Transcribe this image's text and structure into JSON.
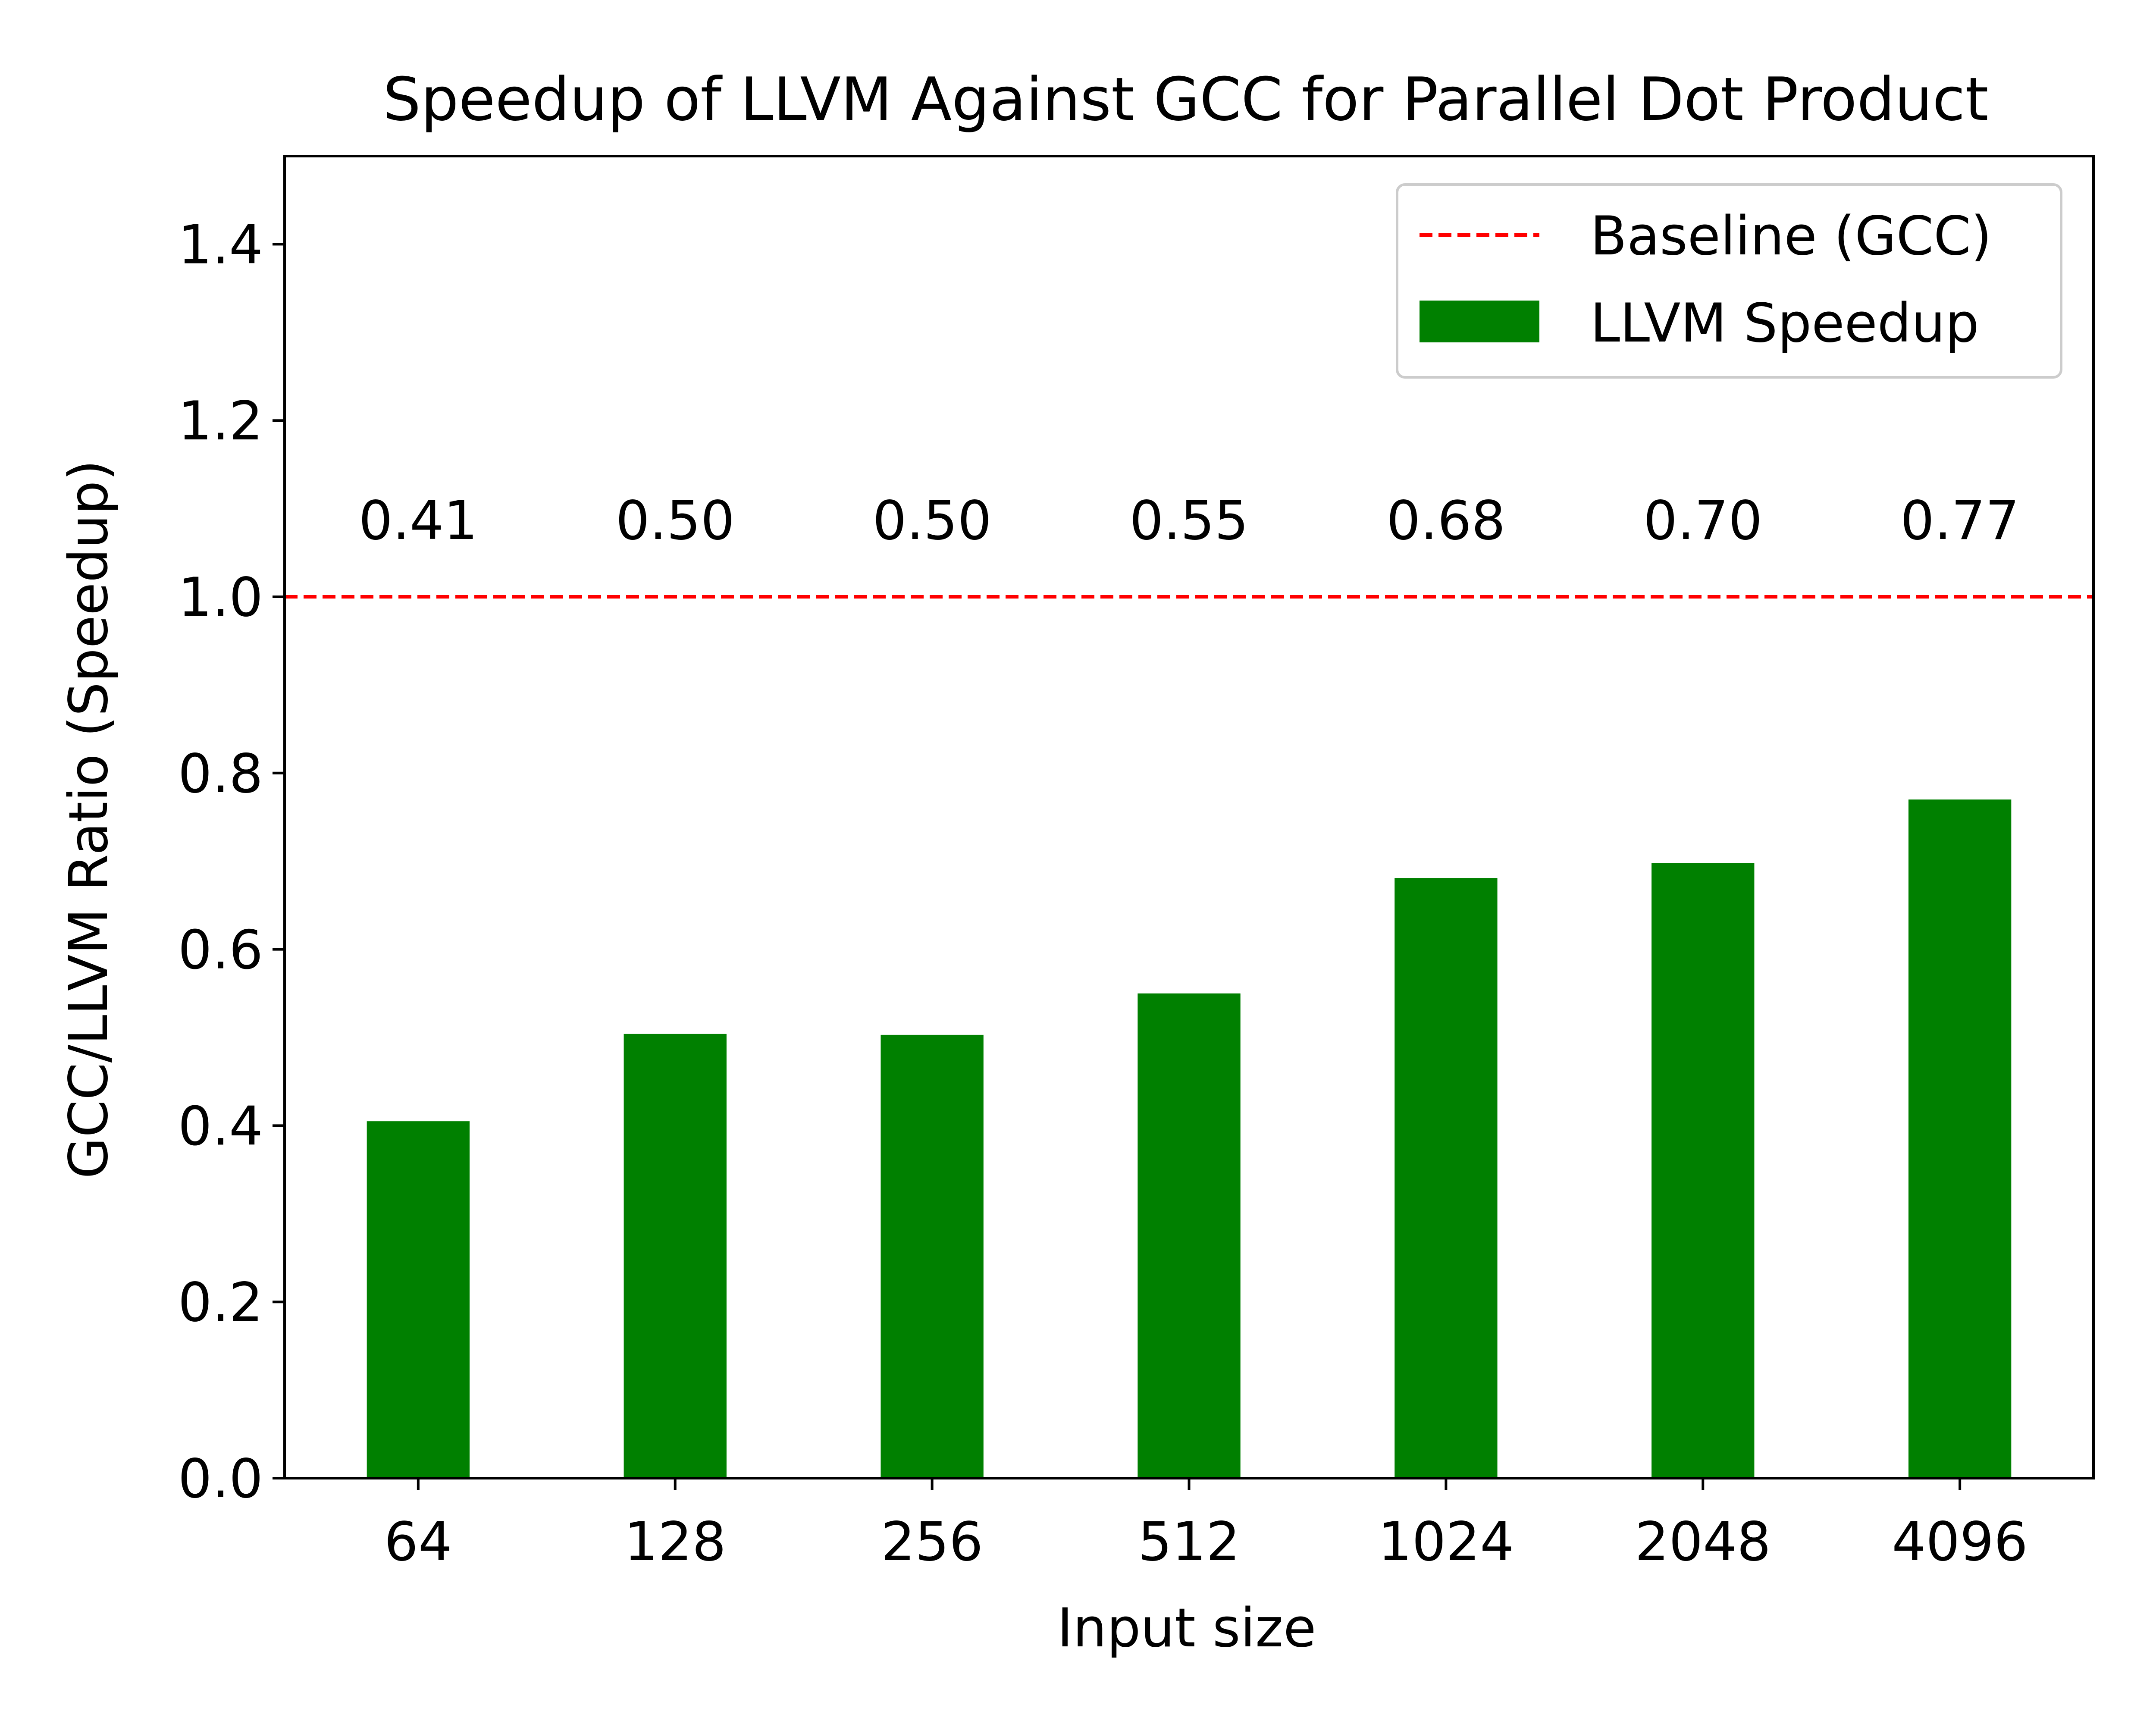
{
  "chart_data": {
    "type": "bar",
    "title": "Speedup of LLVM Against GCC for Parallel Dot Product",
    "xlabel": "Input size",
    "ylabel": "GCC/LLVM Ratio (Speedup)",
    "categories": [
      "64",
      "128",
      "256",
      "512",
      "1024",
      "2048",
      "4096"
    ],
    "series": [
      {
        "name": "LLVM Speedup",
        "values": [
          0.405,
          0.504,
          0.503,
          0.55,
          0.681,
          0.698,
          0.77
        ],
        "data_labels": [
          "0.41",
          "0.50",
          "0.50",
          "0.55",
          "0.68",
          "0.70",
          "0.77"
        ],
        "color": "#008000"
      }
    ],
    "baseline": {
      "name": "Baseline (GCC)",
      "value": 1.0,
      "color": "#ff0000",
      "style": "dashed"
    },
    "ylim": [
      0,
      1.5
    ],
    "yticks": [
      "0.0",
      "0.2",
      "0.4",
      "0.6",
      "0.8",
      "1.0",
      "1.2",
      "1.4"
    ],
    "grid": false,
    "legend_position": "top-right"
  }
}
